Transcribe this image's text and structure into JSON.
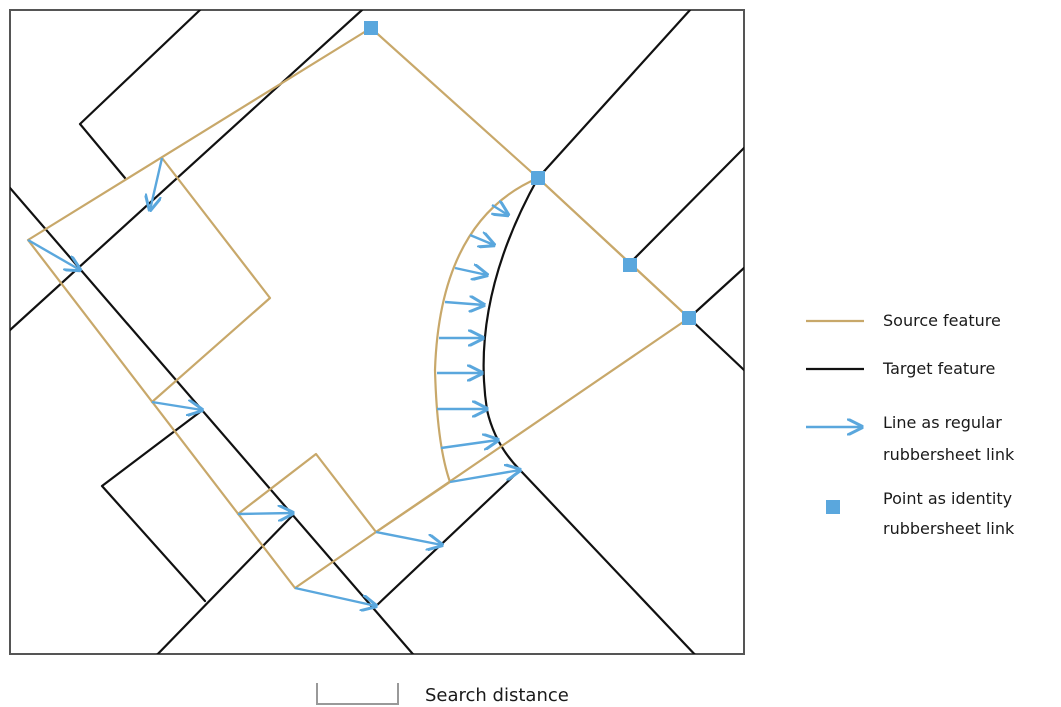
{
  "colors": {
    "source": "#c8a86a",
    "target": "#111111",
    "link": "#5aa7dd",
    "frame": "#555555",
    "scale_bar": "#999999"
  },
  "legend": {
    "source_label": "Source feature",
    "target_label": "Target feature",
    "line_link_label_1": "Line as regular",
    "line_link_label_2": "rubbersheet link",
    "point_link_label_1": "Point as identity",
    "point_link_label_2": "rubbersheet link"
  },
  "caption": {
    "search_distance_label": "Search distance"
  }
}
